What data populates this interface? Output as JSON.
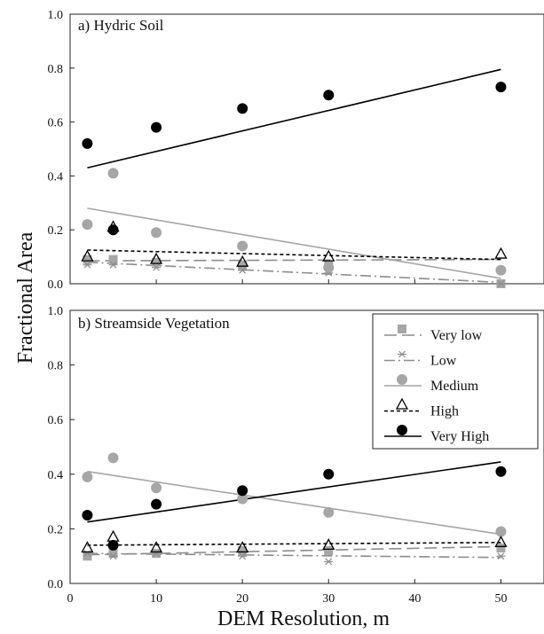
{
  "chart_data": {
    "type": "scatter",
    "ylabel": "Fractional Area",
    "xlabel": "DEM Resolution, m",
    "xlim": [
      0,
      55
    ],
    "x_ticks": [
      "0",
      "10",
      "20",
      "30",
      "40",
      "50"
    ],
    "y_ticks": [
      "0.0",
      "0.2",
      "0.4",
      "0.6",
      "0.8",
      "1.0"
    ],
    "grid": false,
    "legend": {
      "placement": "top-right of panel b",
      "entries": [
        "Very low",
        "Low",
        "Medium",
        "High",
        "Very High"
      ]
    },
    "series_styles": {
      "Very low": {
        "marker": "square",
        "marker_color": "#a6a6a6",
        "line_style": "long-dash",
        "line_color": "#8c8c8c"
      },
      "Low": {
        "marker": "asterisk",
        "marker_color": "#8c8c8c",
        "line_style": "dash-dot",
        "line_color": "#8c8c8c"
      },
      "Medium": {
        "marker": "circle",
        "marker_color": "#a6a6a6",
        "line_style": "solid",
        "line_color": "#a6a6a6"
      },
      "High": {
        "marker": "open-triangle",
        "marker_color": "#000000",
        "line_style": "short-dash",
        "line_color": "#000000"
      },
      "Very High": {
        "marker": "circle",
        "marker_color": "#000000",
        "line_style": "solid",
        "line_color": "#000000"
      }
    },
    "panels": [
      {
        "title": "a) Hydric Soil",
        "ylim": [
          0,
          1
        ],
        "x": [
          2,
          5,
          10,
          20,
          30,
          50
        ],
        "series": [
          {
            "name": "Very low",
            "values": [
              0.09,
              0.09,
              0.08,
              0.07,
              0.07,
              0.0
            ],
            "trend": [
              0.085,
              0.09
            ]
          },
          {
            "name": "Low",
            "values": [
              0.07,
              0.07,
              0.06,
              0.05,
              0.04,
              0.0
            ],
            "trend": [
              0.08,
              0.005
            ]
          },
          {
            "name": "Medium",
            "values": [
              0.22,
              0.41,
              0.19,
              0.14,
              0.06,
              0.05
            ],
            "trend": [
              0.28,
              0.02
            ]
          },
          {
            "name": "High",
            "values": [
              0.1,
              0.21,
              0.09,
              0.08,
              0.1,
              0.11
            ],
            "trend": [
              0.125,
              0.09
            ]
          },
          {
            "name": "Very High",
            "values": [
              0.52,
              0.2,
              0.58,
              0.65,
              0.7,
              0.73
            ],
            "trend": [
              0.43,
              0.795
            ]
          }
        ]
      },
      {
        "title": "b) Streamside Vegetation",
        "ylim": [
          0,
          1
        ],
        "x": [
          2,
          5,
          10,
          20,
          30,
          50
        ],
        "series": [
          {
            "name": "Very low",
            "values": [
              0.1,
              0.11,
              0.11,
              0.12,
              0.12,
              0.13
            ],
            "trend": [
              0.105,
              0.135
            ]
          },
          {
            "name": "Low",
            "values": [
              0.11,
              0.1,
              0.11,
              0.1,
              0.08,
              0.1
            ],
            "trend": [
              0.11,
              0.095
            ]
          },
          {
            "name": "Medium",
            "values": [
              0.39,
              0.46,
              0.35,
              0.31,
              0.26,
              0.19
            ],
            "trend": [
              0.41,
              0.18
            ]
          },
          {
            "name": "High",
            "values": [
              0.13,
              0.17,
              0.13,
              0.13,
              0.14,
              0.15
            ],
            "trend": [
              0.14,
              0.15
            ]
          },
          {
            "name": "Very High",
            "values": [
              0.25,
              0.14,
              0.29,
              0.34,
              0.4,
              0.41
            ],
            "trend": [
              0.225,
              0.445
            ]
          }
        ]
      }
    ]
  }
}
